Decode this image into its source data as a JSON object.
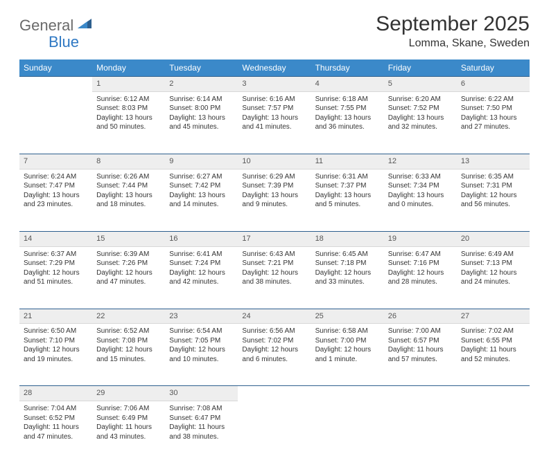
{
  "logo": {
    "general": "General",
    "blue": "Blue"
  },
  "title": "September 2025",
  "location": "Lomma, Skane, Sweden",
  "colors": {
    "header_bg": "#3b89c9",
    "header_text": "#ffffff",
    "daynum_bg": "#eeeeee",
    "border_top": "#2d5f8e",
    "logo_gray": "#6a6a6a",
    "logo_blue": "#2f78c3"
  },
  "weekdays": [
    "Sunday",
    "Monday",
    "Tuesday",
    "Wednesday",
    "Thursday",
    "Friday",
    "Saturday"
  ],
  "weeks": [
    {
      "nums": [
        "",
        "1",
        "2",
        "3",
        "4",
        "5",
        "6"
      ],
      "cells": [
        {
          "empty": true
        },
        {
          "sunrise": "Sunrise: 6:12 AM",
          "sunset": "Sunset: 8:03 PM",
          "daylight1": "Daylight: 13 hours",
          "daylight2": "and 50 minutes."
        },
        {
          "sunrise": "Sunrise: 6:14 AM",
          "sunset": "Sunset: 8:00 PM",
          "daylight1": "Daylight: 13 hours",
          "daylight2": "and 45 minutes."
        },
        {
          "sunrise": "Sunrise: 6:16 AM",
          "sunset": "Sunset: 7:57 PM",
          "daylight1": "Daylight: 13 hours",
          "daylight2": "and 41 minutes."
        },
        {
          "sunrise": "Sunrise: 6:18 AM",
          "sunset": "Sunset: 7:55 PM",
          "daylight1": "Daylight: 13 hours",
          "daylight2": "and 36 minutes."
        },
        {
          "sunrise": "Sunrise: 6:20 AM",
          "sunset": "Sunset: 7:52 PM",
          "daylight1": "Daylight: 13 hours",
          "daylight2": "and 32 minutes."
        },
        {
          "sunrise": "Sunrise: 6:22 AM",
          "sunset": "Sunset: 7:50 PM",
          "daylight1": "Daylight: 13 hours",
          "daylight2": "and 27 minutes."
        }
      ]
    },
    {
      "nums": [
        "7",
        "8",
        "9",
        "10",
        "11",
        "12",
        "13"
      ],
      "cells": [
        {
          "sunrise": "Sunrise: 6:24 AM",
          "sunset": "Sunset: 7:47 PM",
          "daylight1": "Daylight: 13 hours",
          "daylight2": "and 23 minutes."
        },
        {
          "sunrise": "Sunrise: 6:26 AM",
          "sunset": "Sunset: 7:44 PM",
          "daylight1": "Daylight: 13 hours",
          "daylight2": "and 18 minutes."
        },
        {
          "sunrise": "Sunrise: 6:27 AM",
          "sunset": "Sunset: 7:42 PM",
          "daylight1": "Daylight: 13 hours",
          "daylight2": "and 14 minutes."
        },
        {
          "sunrise": "Sunrise: 6:29 AM",
          "sunset": "Sunset: 7:39 PM",
          "daylight1": "Daylight: 13 hours",
          "daylight2": "and 9 minutes."
        },
        {
          "sunrise": "Sunrise: 6:31 AM",
          "sunset": "Sunset: 7:37 PM",
          "daylight1": "Daylight: 13 hours",
          "daylight2": "and 5 minutes."
        },
        {
          "sunrise": "Sunrise: 6:33 AM",
          "sunset": "Sunset: 7:34 PM",
          "daylight1": "Daylight: 13 hours",
          "daylight2": "and 0 minutes."
        },
        {
          "sunrise": "Sunrise: 6:35 AM",
          "sunset": "Sunset: 7:31 PM",
          "daylight1": "Daylight: 12 hours",
          "daylight2": "and 56 minutes."
        }
      ]
    },
    {
      "nums": [
        "14",
        "15",
        "16",
        "17",
        "18",
        "19",
        "20"
      ],
      "cells": [
        {
          "sunrise": "Sunrise: 6:37 AM",
          "sunset": "Sunset: 7:29 PM",
          "daylight1": "Daylight: 12 hours",
          "daylight2": "and 51 minutes."
        },
        {
          "sunrise": "Sunrise: 6:39 AM",
          "sunset": "Sunset: 7:26 PM",
          "daylight1": "Daylight: 12 hours",
          "daylight2": "and 47 minutes."
        },
        {
          "sunrise": "Sunrise: 6:41 AM",
          "sunset": "Sunset: 7:24 PM",
          "daylight1": "Daylight: 12 hours",
          "daylight2": "and 42 minutes."
        },
        {
          "sunrise": "Sunrise: 6:43 AM",
          "sunset": "Sunset: 7:21 PM",
          "daylight1": "Daylight: 12 hours",
          "daylight2": "and 38 minutes."
        },
        {
          "sunrise": "Sunrise: 6:45 AM",
          "sunset": "Sunset: 7:18 PM",
          "daylight1": "Daylight: 12 hours",
          "daylight2": "and 33 minutes."
        },
        {
          "sunrise": "Sunrise: 6:47 AM",
          "sunset": "Sunset: 7:16 PM",
          "daylight1": "Daylight: 12 hours",
          "daylight2": "and 28 minutes."
        },
        {
          "sunrise": "Sunrise: 6:49 AM",
          "sunset": "Sunset: 7:13 PM",
          "daylight1": "Daylight: 12 hours",
          "daylight2": "and 24 minutes."
        }
      ]
    },
    {
      "nums": [
        "21",
        "22",
        "23",
        "24",
        "25",
        "26",
        "27"
      ],
      "cells": [
        {
          "sunrise": "Sunrise: 6:50 AM",
          "sunset": "Sunset: 7:10 PM",
          "daylight1": "Daylight: 12 hours",
          "daylight2": "and 19 minutes."
        },
        {
          "sunrise": "Sunrise: 6:52 AM",
          "sunset": "Sunset: 7:08 PM",
          "daylight1": "Daylight: 12 hours",
          "daylight2": "and 15 minutes."
        },
        {
          "sunrise": "Sunrise: 6:54 AM",
          "sunset": "Sunset: 7:05 PM",
          "daylight1": "Daylight: 12 hours",
          "daylight2": "and 10 minutes."
        },
        {
          "sunrise": "Sunrise: 6:56 AM",
          "sunset": "Sunset: 7:02 PM",
          "daylight1": "Daylight: 12 hours",
          "daylight2": "and 6 minutes."
        },
        {
          "sunrise": "Sunrise: 6:58 AM",
          "sunset": "Sunset: 7:00 PM",
          "daylight1": "Daylight: 12 hours",
          "daylight2": "and 1 minute."
        },
        {
          "sunrise": "Sunrise: 7:00 AM",
          "sunset": "Sunset: 6:57 PM",
          "daylight1": "Daylight: 11 hours",
          "daylight2": "and 57 minutes."
        },
        {
          "sunrise": "Sunrise: 7:02 AM",
          "sunset": "Sunset: 6:55 PM",
          "daylight1": "Daylight: 11 hours",
          "daylight2": "and 52 minutes."
        }
      ]
    },
    {
      "nums": [
        "28",
        "29",
        "30",
        "",
        "",
        "",
        ""
      ],
      "cells": [
        {
          "sunrise": "Sunrise: 7:04 AM",
          "sunset": "Sunset: 6:52 PM",
          "daylight1": "Daylight: 11 hours",
          "daylight2": "and 47 minutes."
        },
        {
          "sunrise": "Sunrise: 7:06 AM",
          "sunset": "Sunset: 6:49 PM",
          "daylight1": "Daylight: 11 hours",
          "daylight2": "and 43 minutes."
        },
        {
          "sunrise": "Sunrise: 7:08 AM",
          "sunset": "Sunset: 6:47 PM",
          "daylight1": "Daylight: 11 hours",
          "daylight2": "and 38 minutes."
        },
        {
          "empty": true
        },
        {
          "empty": true
        },
        {
          "empty": true
        },
        {
          "empty": true
        }
      ]
    }
  ]
}
